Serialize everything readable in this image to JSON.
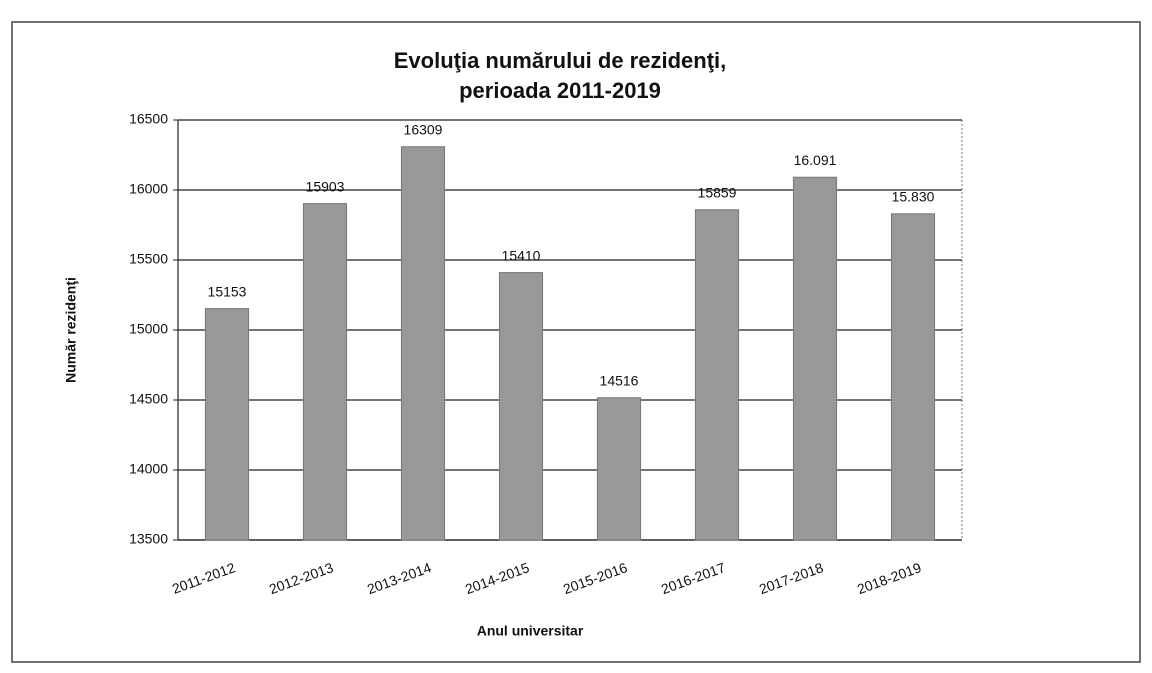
{
  "chart_data": {
    "type": "bar",
    "title": [
      "Evoluţia numărului  de rezidenţi,",
      "perioada 2011-2019"
    ],
    "x_label": "Anul universitar",
    "y_label": "Număr rezidenţi",
    "categories": [
      "2011-2012",
      "2012-2013",
      "2013-2014",
      "2014-2015",
      "2015-2016",
      "2016-2017",
      "2017-2018",
      "2018-2019"
    ],
    "values": [
      15153,
      15903,
      16309,
      15410,
      14516,
      15859,
      16091,
      15830
    ],
    "value_labels": [
      "15153",
      "15903",
      "16309",
      "15410",
      "14516",
      "15859",
      "16.091",
      "15.830"
    ],
    "color": "#999999",
    "ylim": [
      13500,
      16500
    ],
    "yticks": [
      13500,
      14000,
      14500,
      15000,
      15500,
      16000,
      16500
    ],
    "grid": true
  }
}
